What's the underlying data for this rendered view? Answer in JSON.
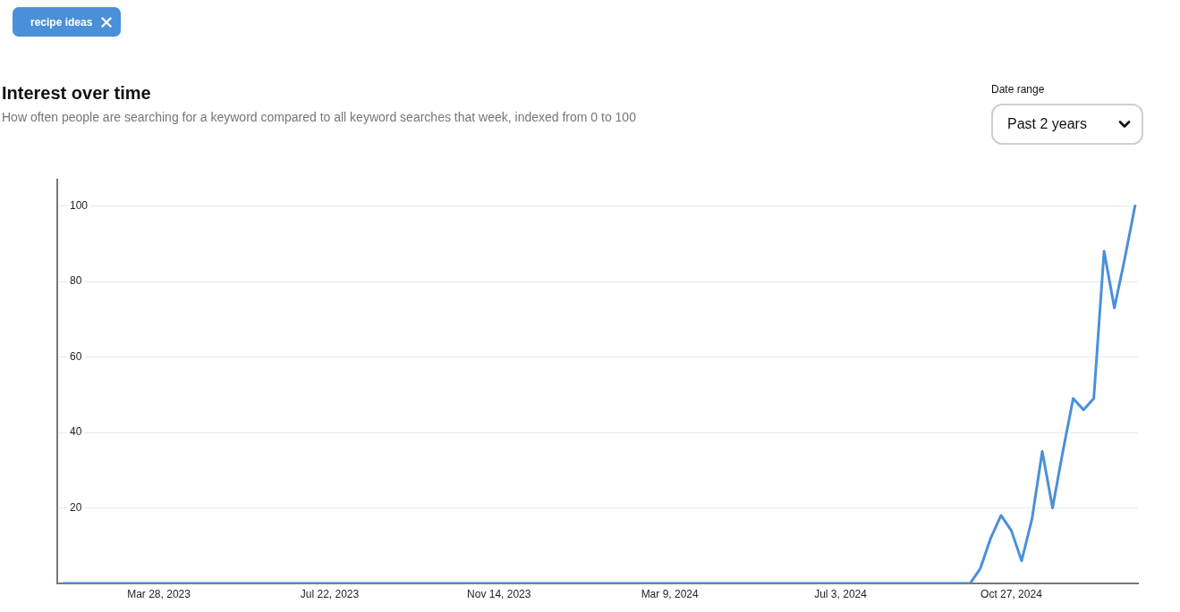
{
  "chart_data": {
    "type": "line",
    "title": "Interest over time",
    "subtitle": "How often people are searching for a keyword compared to all keyword searches that week, indexed from 0 to 100",
    "annotations": [
      "Date range",
      "Past 2 years"
    ],
    "x": [
      "2023-01-22",
      "2023-01-29",
      "2023-02-05",
      "2023-02-12",
      "2023-02-19",
      "2023-02-26",
      "2023-03-05",
      "2023-03-12",
      "2023-03-19",
      "2023-03-26",
      "2023-04-02",
      "2023-04-09",
      "2023-04-16",
      "2023-04-23",
      "2023-04-30",
      "2023-05-07",
      "2023-05-14",
      "2023-05-21",
      "2023-05-28",
      "2023-06-04",
      "2023-06-11",
      "2023-06-18",
      "2023-06-25",
      "2023-07-02",
      "2023-07-09",
      "2023-07-16",
      "2023-07-23",
      "2023-07-30",
      "2023-08-06",
      "2023-08-13",
      "2023-08-20",
      "2023-08-27",
      "2023-09-03",
      "2023-09-10",
      "2023-09-17",
      "2023-09-24",
      "2023-10-01",
      "2023-10-08",
      "2023-10-15",
      "2023-10-22",
      "2023-10-29",
      "2023-11-05",
      "2023-11-12",
      "2023-11-19",
      "2023-11-26",
      "2023-12-03",
      "2023-12-10",
      "2023-12-17",
      "2023-12-24",
      "2023-12-31",
      "2024-01-07",
      "2024-01-14",
      "2024-01-21",
      "2024-01-28",
      "2024-02-04",
      "2024-02-11",
      "2024-02-18",
      "2024-02-25",
      "2024-03-03",
      "2024-03-10",
      "2024-03-17",
      "2024-03-24",
      "2024-03-31",
      "2024-04-07",
      "2024-04-14",
      "2024-04-21",
      "2024-04-28",
      "2024-05-05",
      "2024-05-12",
      "2024-05-19",
      "2024-05-26",
      "2024-06-02",
      "2024-06-09",
      "2024-06-16",
      "2024-06-23",
      "2024-06-30",
      "2024-07-07",
      "2024-07-14",
      "2024-07-21",
      "2024-07-28",
      "2024-08-04",
      "2024-08-11",
      "2024-08-18",
      "2024-08-25",
      "2024-09-01",
      "2024-09-08",
      "2024-09-15",
      "2024-09-22",
      "2024-09-29",
      "2024-10-06",
      "2024-10-13",
      "2024-10-20",
      "2024-10-27",
      "2024-11-03",
      "2024-11-10",
      "2024-11-17",
      "2024-11-24",
      "2024-12-01",
      "2024-12-08",
      "2024-12-15",
      "2024-12-22",
      "2024-12-29",
      "2025-01-05",
      "2025-01-12",
      "2025-01-19"
    ],
    "series": [
      {
        "name": "recipe ideas",
        "color": "#4a90d9",
        "values": [
          0,
          0,
          0,
          0,
          0,
          0,
          0,
          0,
          0,
          0,
          0,
          0,
          0,
          0,
          0,
          0,
          0,
          0,
          0,
          0,
          0,
          0,
          0,
          0,
          0,
          0,
          0,
          0,
          0,
          0,
          0,
          0,
          0,
          0,
          0,
          0,
          0,
          0,
          0,
          0,
          0,
          0,
          0,
          0,
          0,
          0,
          0,
          0,
          0,
          0,
          0,
          0,
          0,
          0,
          0,
          0,
          0,
          0,
          0,
          0,
          0,
          0,
          0,
          0,
          0,
          0,
          0,
          0,
          0,
          0,
          0,
          0,
          0,
          0,
          0,
          0,
          0,
          0,
          0,
          0,
          0,
          0,
          0,
          0,
          0,
          0,
          0,
          0,
          0,
          4,
          12,
          18,
          14,
          6,
          17,
          35,
          20,
          35,
          49,
          46,
          49,
          88,
          73,
          86,
          100
        ]
      }
    ],
    "xlim": [
      "2023-01-18",
      "2025-01-21"
    ],
    "xticks": [
      {
        "value": "2023-03-28",
        "label": "Mar 28, 2023"
      },
      {
        "value": "2023-07-22",
        "label": "Jul 22, 2023"
      },
      {
        "value": "2023-11-14",
        "label": "Nov 14, 2023"
      },
      {
        "value": "2024-03-09",
        "label": "Mar 9, 2024"
      },
      {
        "value": "2024-07-03",
        "label": "Jul 3, 2024"
      },
      {
        "value": "2024-10-27",
        "label": "Oct 27, 2024"
      }
    ],
    "ylim": [
      0,
      107
    ],
    "yticks": [
      20,
      40,
      60,
      80,
      100
    ],
    "grid": "y",
    "legend": "top left"
  }
}
